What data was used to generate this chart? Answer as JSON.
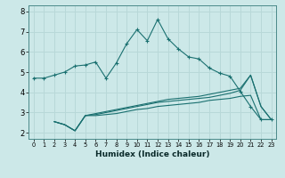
{
  "xlabel": "Humidex (Indice chaleur)",
  "background_color": "#cce8e8",
  "grid_color": "#b8d8d8",
  "line_color": "#1a7070",
  "x_ticks": [
    0,
    1,
    2,
    3,
    4,
    5,
    6,
    7,
    8,
    9,
    10,
    11,
    12,
    13,
    14,
    15,
    16,
    17,
    18,
    19,
    20,
    21,
    22,
    23
  ],
  "y_ticks": [
    2,
    3,
    4,
    5,
    6,
    7,
    8
  ],
  "ylim": [
    1.7,
    8.3
  ],
  "xlim": [
    -0.5,
    23.5
  ],
  "series1_x": [
    0,
    1,
    2,
    3,
    4,
    5,
    6,
    7,
    8,
    9,
    10,
    11,
    12,
    13,
    14,
    15,
    16,
    17,
    18,
    19,
    20,
    21,
    22,
    23
  ],
  "series1_y": [
    4.7,
    4.7,
    4.85,
    5.0,
    5.3,
    5.35,
    5.5,
    4.7,
    5.45,
    6.4,
    7.1,
    6.55,
    7.6,
    6.65,
    6.15,
    5.75,
    5.65,
    5.2,
    4.95,
    4.8,
    4.05,
    3.3,
    2.65,
    2.65
  ],
  "series2_x": [
    2,
    3,
    4,
    5,
    6,
    7,
    8,
    9,
    10,
    11,
    12,
    13,
    14,
    15,
    16,
    17,
    18,
    19,
    20,
    21,
    22,
    23
  ],
  "series2_y": [
    2.55,
    2.4,
    2.1,
    2.85,
    2.85,
    2.9,
    2.95,
    3.05,
    3.15,
    3.2,
    3.3,
    3.35,
    3.4,
    3.45,
    3.5,
    3.6,
    3.65,
    3.7,
    3.8,
    3.85,
    2.65,
    2.65
  ],
  "series3_x": [
    2,
    3,
    4,
    5,
    6,
    7,
    8,
    9,
    10,
    11,
    12,
    13,
    14,
    15,
    16,
    17,
    18,
    19,
    20,
    21,
    22,
    23
  ],
  "series3_y": [
    2.55,
    2.4,
    2.1,
    2.85,
    2.95,
    3.05,
    3.15,
    3.25,
    3.35,
    3.45,
    3.55,
    3.65,
    3.7,
    3.75,
    3.8,
    3.9,
    4.0,
    4.1,
    4.2,
    4.85,
    3.3,
    2.65
  ],
  "series4_x": [
    2,
    3,
    4,
    5,
    6,
    7,
    8,
    9,
    10,
    11,
    12,
    13,
    14,
    15,
    16,
    17,
    18,
    19,
    20,
    21,
    22,
    23
  ],
  "series4_y": [
    2.55,
    2.4,
    2.1,
    2.85,
    2.9,
    3.0,
    3.1,
    3.2,
    3.3,
    3.4,
    3.5,
    3.55,
    3.6,
    3.65,
    3.7,
    3.75,
    3.85,
    3.95,
    4.1,
    4.85,
    3.3,
    2.65
  ]
}
